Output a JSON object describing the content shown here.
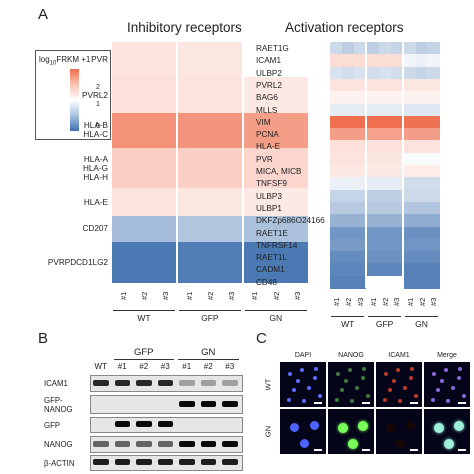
{
  "panel_a": {
    "letter": "A",
    "inhibitory": {
      "title": "Inhibitory receptors",
      "rows": [
        {
          "labels": [
            "PVR"
          ],
          "values": [
            0.45,
            0.45,
            0.45,
            0.4,
            0.4,
            0.4,
            0.0,
            0.0,
            0.0
          ]
        },
        {
          "labels": [
            "PVRL2"
          ],
          "values": [
            0.5,
            0.5,
            0.5,
            0.45,
            0.45,
            0.45,
            0.35,
            0.35,
            0.35
          ]
        },
        {
          "labels": [
            "HLA-B",
            "HLA-C"
          ],
          "values": [
            1.75,
            1.75,
            1.75,
            1.7,
            1.7,
            1.7,
            1.55,
            1.55,
            1.55
          ]
        },
        {
          "labels": [
            "HLA-A",
            "HLA-G",
            "HLA-H"
          ],
          "values": [
            0.8,
            0.8,
            0.8,
            0.75,
            0.75,
            0.75,
            0.65,
            0.65,
            0.65
          ]
        },
        {
          "labels": [
            "HLA-E"
          ],
          "values": [
            0.45,
            0.45,
            0.45,
            0.4,
            0.4,
            0.4,
            0.35,
            0.35,
            0.35
          ]
        },
        {
          "labels": [
            "CD207"
          ],
          "values": [
            -0.7,
            -0.7,
            -0.7,
            -0.6,
            -0.6,
            -0.6,
            -0.65,
            -0.65,
            -0.65
          ]
        },
        {
          "labels": [
            "PVRPDCD1LG2"
          ],
          "values": [
            -1.4,
            -1.4,
            -1.4,
            -1.35,
            -1.35,
            -1.35,
            -1.4,
            -1.4,
            -1.4
          ]
        }
      ],
      "row_weights": [
        2.3,
        2.3,
        2.3,
        2.6,
        1.8,
        1.7,
        2.6
      ]
    },
    "activation": {
      "title": "Activation receptors",
      "rows": [
        {
          "label": "RAET1G",
          "values": [
            -0.4,
            -0.5,
            -0.4,
            -0.5,
            -0.4,
            -0.45,
            -0.4,
            -0.5,
            -0.45
          ]
        },
        {
          "label": "ICAM1",
          "values": [
            0.55,
            0.55,
            0.55,
            0.55,
            0.55,
            0.55,
            -0.1,
            -0.15,
            -0.1
          ]
        },
        {
          "label": "ULBP2",
          "values": [
            -0.3,
            -0.35,
            -0.3,
            -0.35,
            -0.3,
            -0.35,
            -0.4,
            -0.45,
            -0.4
          ]
        },
        {
          "label": "PVRL2",
          "values": [
            0.45,
            0.45,
            0.45,
            0.45,
            0.45,
            0.45,
            0.4,
            0.4,
            0.4
          ]
        },
        {
          "label": "BAG6",
          "values": [
            0.2,
            0.2,
            0.2,
            0.2,
            0.2,
            0.2,
            0.2,
            0.2,
            0.2
          ]
        },
        {
          "label": "MLLS",
          "values": [
            -0.2,
            -0.2,
            -0.2,
            -0.2,
            -0.2,
            -0.2,
            -0.25,
            -0.25,
            -0.25
          ]
        },
        {
          "label": "VIM",
          "values": [
            2.3,
            2.3,
            2.3,
            2.3,
            2.3,
            2.3,
            2.25,
            2.25,
            2.25
          ]
        },
        {
          "label": "PCNA",
          "values": [
            1.55,
            1.55,
            1.55,
            1.5,
            1.5,
            1.5,
            1.55,
            1.55,
            1.55
          ]
        },
        {
          "label": "HLA-E",
          "values": [
            0.5,
            0.5,
            0.5,
            0.5,
            0.5,
            0.5,
            0.45,
            0.45,
            0.45
          ]
        },
        {
          "label": "PVR",
          "values": [
            0.45,
            0.45,
            0.45,
            0.4,
            0.4,
            0.4,
            -0.05,
            -0.05,
            -0.05
          ]
        },
        {
          "label": "MICA, MICB",
          "values": [
            0.35,
            0.35,
            0.35,
            0.35,
            0.35,
            0.35,
            0.3,
            0.3,
            0.3
          ]
        },
        {
          "label": "TNFSF9",
          "values": [
            -0.15,
            -0.15,
            -0.15,
            -0.2,
            -0.2,
            -0.2,
            -0.35,
            -0.35,
            -0.35
          ]
        },
        {
          "label": "ULBP3",
          "values": [
            -0.45,
            -0.45,
            -0.45,
            -0.5,
            -0.5,
            -0.5,
            -0.4,
            -0.4,
            -0.4
          ]
        },
        {
          "label": "ULBP1",
          "values": [
            -0.55,
            -0.55,
            -0.55,
            -0.55,
            -0.55,
            -0.55,
            -0.6,
            -0.6,
            -0.6
          ]
        },
        {
          "label": "DKFZp686O24166",
          "values": [
            -0.8,
            -0.8,
            -0.8,
            -0.8,
            -0.8,
            -0.8,
            -0.85,
            -0.85,
            -0.85
          ]
        },
        {
          "label": "RAET1E",
          "values": [
            -1.1,
            -1.1,
            -1.1,
            -1.1,
            -1.1,
            -1.1,
            -1.15,
            -1.15,
            -1.15
          ]
        },
        {
          "label": "TNFRSF14",
          "values": [
            -1.05,
            -1.05,
            -1.05,
            -1.1,
            -1.1,
            -1.1,
            -1.1,
            -1.1,
            -1.1
          ]
        },
        {
          "label": "RAET1L",
          "values": [
            -1.2,
            -1.2,
            -1.2,
            -1.15,
            -1.15,
            -1.15,
            -1.2,
            -1.2,
            -1.2
          ]
        },
        {
          "label": "CADM1",
          "values": [
            -1.25,
            -1.25,
            -1.25,
            -1.25,
            -1.25,
            -1.25,
            -1.3,
            -1.3,
            -1.3
          ]
        },
        {
          "label": "CD48",
          "values": [
            -1.3,
            -1.3,
            -1.3,
            0.0,
            0.0,
            0.0,
            -1.3,
            -1.3,
            -1.3
          ]
        }
      ]
    },
    "replicates": [
      "#1",
      "#2",
      "#3"
    ],
    "groups": [
      "WT",
      "GFP",
      "GN"
    ],
    "legend": {
      "title_pre": "log",
      "title_sub": "10",
      "title_post": "FRKM +1",
      "ticks": [
        "2",
        "1",
        "0"
      ]
    },
    "colors": {
      "high": "#ef6f4f",
      "mid": "#ffffff",
      "low": "#3d6fae"
    }
  },
  "panel_b": {
    "letter": "B",
    "columns": [
      "WT",
      "#1",
      "#2",
      "#3",
      "#1",
      "#2",
      "#3"
    ],
    "groups": [
      "GFP",
      "GN"
    ],
    "rows": [
      {
        "labels": [
          "ICAM1"
        ],
        "intensity": [
          0.85,
          0.85,
          0.85,
          0.85,
          0.25,
          0.25,
          0.25
        ]
      },
      {
        "labels": [
          "GFP-",
          "NANOG"
        ],
        "intensity": [
          0.0,
          0.0,
          0.0,
          0.0,
          1.0,
          1.0,
          1.0
        ]
      },
      {
        "labels": [
          "GFP"
        ],
        "intensity": [
          0.0,
          1.0,
          1.0,
          1.0,
          0.0,
          0.0,
          0.0
        ]
      },
      {
        "labels": [
          "NANOG"
        ],
        "intensity": [
          0.55,
          0.55,
          0.55,
          0.55,
          1.0,
          1.0,
          1.0
        ]
      },
      {
        "labels": [
          "β-ACTIN"
        ],
        "intensity": [
          0.9,
          0.9,
          0.9,
          0.9,
          0.9,
          0.9,
          0.9
        ]
      }
    ]
  },
  "panel_c": {
    "letter": "C",
    "columns": [
      "DAPI",
      "NANOG",
      "ICAM1",
      "Merge"
    ],
    "rows": [
      "WT",
      "GN"
    ]
  }
}
